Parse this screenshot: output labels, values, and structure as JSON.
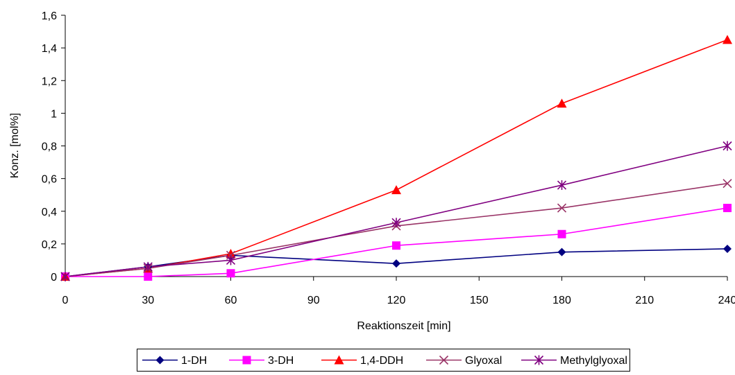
{
  "chart_data": {
    "type": "line",
    "title": "",
    "xlabel": "Reaktionszeit [min]",
    "ylabel": "Konz. [mol%]",
    "xlim": [
      0,
      240
    ],
    "ylim": [
      0,
      1.6
    ],
    "x_ticks": [
      "0",
      "30",
      "60",
      "90",
      "120",
      "150",
      "180",
      "210",
      "240"
    ],
    "y_ticks": [
      "0",
      "0,2",
      "0,4",
      "0,6",
      "0,8",
      "1",
      "1,2",
      "1,4",
      "1,6"
    ],
    "grid": false,
    "legend_position": "bottom",
    "x": [
      0,
      30,
      60,
      120,
      180,
      240
    ],
    "series": [
      {
        "name": "1-DH",
        "color": "#000080",
        "marker": "diamond",
        "values": [
          0,
          0.06,
          0.13,
          0.08,
          0.15,
          0.17
        ]
      },
      {
        "name": "3-DH",
        "color": "#ff00ff",
        "marker": "square",
        "values": [
          0,
          0,
          0.02,
          0.19,
          0.26,
          0.42
        ]
      },
      {
        "name": "1,4-DDH",
        "color": "#ff0000",
        "marker": "triangle",
        "values": [
          0,
          0.05,
          0.14,
          0.53,
          1.06,
          1.45
        ]
      },
      {
        "name": "Glyoxal",
        "color": "#993366",
        "marker": "x",
        "values": [
          0,
          0.05,
          0.13,
          0.31,
          0.42,
          0.57
        ]
      },
      {
        "name": "Methylglyoxal",
        "color": "#800080",
        "marker": "star",
        "values": [
          0,
          0.06,
          0.1,
          0.33,
          0.56,
          0.8
        ]
      }
    ]
  }
}
